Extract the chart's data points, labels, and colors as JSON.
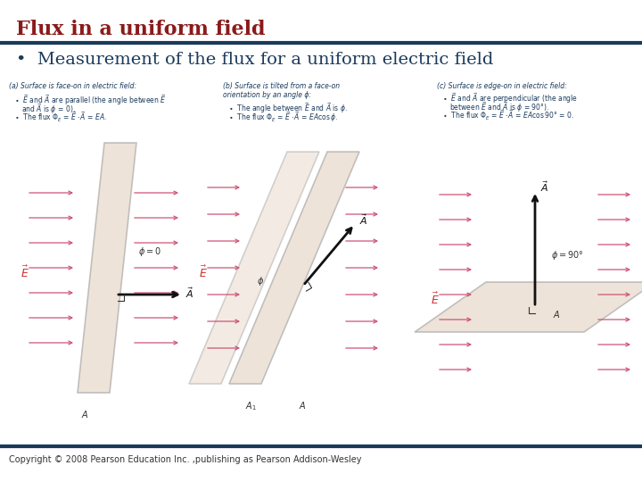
{
  "title": "Flux in a uniform field",
  "title_color": "#8B1A1A",
  "title_fontsize": 16,
  "title_fontstyle": "bold",
  "subtitle": "Measurement of the flux for a uniform electric field",
  "subtitle_color": "#1a3a5c",
  "subtitle_fontsize": 14,
  "bullet": "•",
  "top_line_color": "#1a3a5c",
  "bottom_line_color": "#1a3a5c",
  "footer_text": "Copyright © 2008 Pearson Education Inc. ,publishing as Pearson Addison-Wesley",
  "footer_color": "#333333",
  "footer_fontsize": 7,
  "bg_color": "#ffffff",
  "arrow_color": "#cc5577",
  "surface_fill": "#e8d8c8",
  "surface_edge": "#aaaaaa",
  "vec_color": "#000000",
  "text_color": "#1a3a5c",
  "label_fontsize": 5.5
}
